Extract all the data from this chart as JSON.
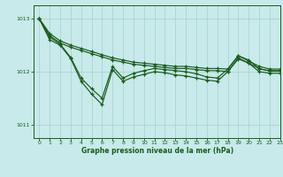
{
  "background_color": "#c8eaea",
  "grid_color": "#a8d0d0",
  "line_color": "#1a5c1a",
  "xlabel": "Graphe pression niveau de la mer (hPa)",
  "ylim": [
    1010.75,
    1013.25
  ],
  "xlim": [
    -0.5,
    23
  ],
  "yticks": [
    1011,
    1012,
    1013
  ],
  "xticks": [
    0,
    1,
    2,
    3,
    4,
    5,
    6,
    7,
    8,
    9,
    10,
    11,
    12,
    13,
    14,
    15,
    16,
    17,
    18,
    19,
    20,
    21,
    22,
    23
  ],
  "series1_x": [
    0,
    1,
    2,
    3,
    4,
    5,
    6,
    7,
    8,
    9,
    10,
    11,
    12,
    13,
    14,
    15,
    16,
    17,
    18,
    19,
    20,
    21,
    22,
    23
  ],
  "series1_y": [
    1013.0,
    1012.72,
    1012.58,
    1012.5,
    1012.44,
    1012.38,
    1012.32,
    1012.26,
    1012.22,
    1012.18,
    1012.16,
    1012.14,
    1012.12,
    1012.1,
    1012.1,
    1012.08,
    1012.06,
    1012.06,
    1012.05,
    1012.3,
    1012.2,
    1012.1,
    1012.05,
    1012.05
  ],
  "series2_x": [
    0,
    1,
    2,
    3,
    4,
    5,
    6,
    7,
    8,
    9,
    10,
    11,
    12,
    13,
    14,
    15,
    16,
    17,
    18,
    19,
    20,
    21,
    22,
    23
  ],
  "series2_y": [
    1013.0,
    1012.68,
    1012.54,
    1012.46,
    1012.4,
    1012.34,
    1012.28,
    1012.22,
    1012.18,
    1012.14,
    1012.12,
    1012.1,
    1012.08,
    1012.06,
    1012.06,
    1012.04,
    1012.02,
    1012.02,
    1012.0,
    1012.26,
    1012.16,
    1012.06,
    1012.01,
    1012.01
  ],
  "series3_x": [
    0,
    1,
    2,
    3,
    4,
    5,
    6,
    7,
    8,
    9,
    10,
    11,
    12,
    13,
    14,
    15,
    16,
    17,
    18,
    19,
    20,
    21,
    22,
    23
  ],
  "series3_y": [
    1013.0,
    1012.65,
    1012.52,
    1012.27,
    1011.88,
    1011.68,
    1011.5,
    1012.1,
    1011.88,
    1011.97,
    1012.02,
    1012.06,
    1012.04,
    1012.02,
    1012.0,
    1011.96,
    1011.9,
    1011.88,
    1012.05,
    1012.3,
    1012.22,
    1012.05,
    1012.02,
    1012.02
  ],
  "series4_x": [
    0,
    1,
    2,
    3,
    4,
    5,
    6,
    7,
    8,
    9,
    10,
    11,
    12,
    13,
    14,
    15,
    16,
    17,
    18,
    19,
    20,
    21,
    22,
    23
  ],
  "series4_y": [
    1013.0,
    1012.6,
    1012.5,
    1012.25,
    1011.82,
    1011.58,
    1011.38,
    1012.04,
    1011.82,
    1011.9,
    1011.95,
    1012.0,
    1011.98,
    1011.94,
    1011.92,
    1011.88,
    1011.84,
    1011.82,
    1012.0,
    1012.24,
    1012.16,
    1012.0,
    1011.97,
    1011.97
  ]
}
